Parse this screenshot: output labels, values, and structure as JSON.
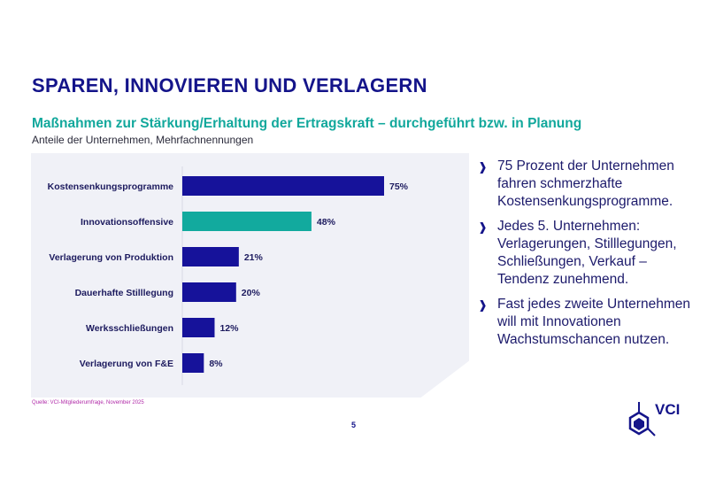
{
  "title": "SPAREN, INNOVIEREN UND VERLAGERN",
  "subtitle": "Maßnahmen zur Stärkung/Erhaltung der Ertragskraft – durchgeführt bzw. in Planung",
  "subsubtitle": "Anteile der Unternehmen, Mehrfachnennungen",
  "source": "Quelle: VCI-Mitgliederumfrage, November 2025",
  "bullets": [
    "75 Prozent der Unternehmen fahren schmerzhafte Kostensenkungsprogramme.",
    "Jedes 5. Unternehmen: Verlagerungen, Stilllegungen, Schließungen, Verkauf – Tendenz zunehmend.",
    "Fast jedes zweite Unternehmen will mit Innovationen Wachstumschancen nutzen."
  ],
  "page_number": "5",
  "logo_text": "VCI",
  "colors": {
    "primary": "#16129a",
    "highlight": "#12aa9e",
    "title": "#14148a",
    "source": "#b02aa8"
  },
  "chart_data": {
    "type": "bar",
    "orientation": "horizontal",
    "categories": [
      "Kostensenkungsprogramme",
      "Innovationsoffensive",
      "Verlagerung von Produktion",
      "Dauerhafte Stilllegung",
      "Werksschließungen",
      "Verlagerung von F&E"
    ],
    "values": [
      75,
      48,
      21,
      20,
      12,
      8
    ],
    "value_labels": [
      "75%",
      "48%",
      "21%",
      "20%",
      "12%",
      "8%"
    ],
    "highlighted_category": "Innovationsoffensive",
    "unit": "%",
    "grid": false
  }
}
